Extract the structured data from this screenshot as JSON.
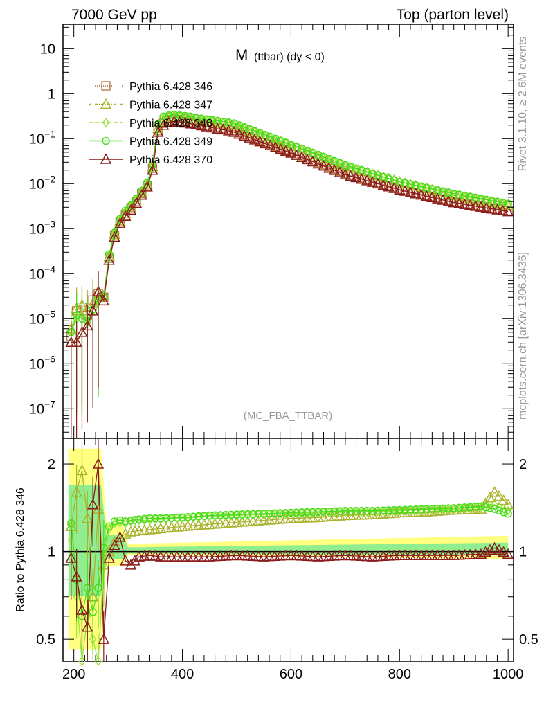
{
  "header": {
    "left": "7000 GeV pp",
    "right": "Top (parton level)"
  },
  "side_labels": {
    "rivet": "Rivet 3.1.10, ≥ 2.6M events",
    "mcplots": "mcplots.cern.ch [arXiv:1306.3436]"
  },
  "chart_data": [
    {
      "type": "line",
      "title": "M (ttbar) (dy < 0)",
      "title_main": "M",
      "title_sub": "(ttbar) (dy < 0)",
      "watermark": "(MC_FBA_TTBAR)",
      "yscale": "log",
      "xlim": [
        180,
        1010
      ],
      "ylim": [
        2.2e-08,
        35
      ],
      "x_ticks": [
        200,
        400,
        600,
        800,
        1000
      ],
      "y_ticks": [
        {
          "value": 1e-07,
          "base": "10",
          "exp": "−7"
        },
        {
          "value": 1e-06,
          "base": "10",
          "exp": "−6"
        },
        {
          "value": 1e-05,
          "base": "10",
          "exp": "−5"
        },
        {
          "value": 0.0001,
          "base": "10",
          "exp": "−4"
        },
        {
          "value": 0.001,
          "base": "10",
          "exp": "−3"
        },
        {
          "value": 0.01,
          "base": "10",
          "exp": "−2"
        },
        {
          "value": 0.1,
          "base": "10",
          "exp": "−1"
        },
        {
          "value": 1,
          "base": "1",
          "exp": ""
        },
        {
          "value": 10,
          "base": "10",
          "exp": ""
        }
      ],
      "legend_position": "top-left",
      "series": [
        {
          "name": "Pythia 6.428 346",
          "color": "#b5703a",
          "marker": "square",
          "dash": "1,2",
          "x": [
            195,
            205,
            215,
            225,
            235,
            245,
            255,
            265,
            275,
            285,
            295,
            305,
            315,
            325,
            335,
            345,
            355,
            365,
            375,
            385,
            395,
            405,
            415,
            425,
            435,
            445,
            455,
            465,
            475,
            485,
            495,
            600,
            700,
            800,
            900,
            1000
          ],
          "y": [
            4e-06,
            1.5e-05,
            1.8e-05,
            1.2e-05,
            2.6e-05,
            3.6e-05,
            3e-05,
            0.00022,
            0.0007,
            0.0014,
            0.002,
            0.0028,
            0.004,
            0.006,
            0.009,
            0.022,
            0.15,
            0.22,
            0.25,
            0.26,
            0.25,
            0.24,
            0.23,
            0.22,
            0.21,
            0.2,
            0.19,
            0.18,
            0.17,
            0.16,
            0.15,
            0.05,
            0.017,
            0.0075,
            0.004,
            0.0025
          ]
        },
        {
          "name": "Pythia 6.428 347",
          "color": "#a8b22a",
          "marker": "triangle",
          "dash": "4,2,1,2",
          "x": [
            195,
            205,
            215,
            225,
            235,
            245,
            255,
            265,
            275,
            285,
            295,
            305,
            315,
            325,
            335,
            345,
            355,
            365,
            375,
            385,
            395,
            405,
            415,
            425,
            435,
            445,
            455,
            465,
            475,
            485,
            495,
            600,
            700,
            800,
            900,
            1000
          ],
          "y": [
            6e-06,
            1.7e-05,
            2e-05,
            1.5e-05,
            2.2e-05,
            3.8e-05,
            3.2e-05,
            0.00024,
            0.00075,
            0.0015,
            0.0022,
            0.003,
            0.0044,
            0.0065,
            0.0098,
            0.024,
            0.17,
            0.26,
            0.3,
            0.31,
            0.3,
            0.29,
            0.28,
            0.27,
            0.26,
            0.25,
            0.24,
            0.23,
            0.22,
            0.21,
            0.2,
            0.07,
            0.024,
            0.011,
            0.0055,
            0.0033
          ]
        },
        {
          "name": "Pythia 6.428 348",
          "color": "#9be23a",
          "marker": "diamond",
          "dash": "6,3",
          "x": [
            195,
            205,
            215,
            225,
            235,
            245,
            255,
            265,
            275,
            285,
            295,
            305,
            315,
            325,
            335,
            345,
            355,
            365,
            375,
            385,
            395,
            405,
            415,
            425,
            435,
            445,
            455,
            465,
            475,
            485,
            495,
            600,
            700,
            800,
            900,
            1000
          ],
          "y": [
            5e-06,
            1e-05,
            1.2e-05,
            8e-06,
            1.5e-05,
            2.5e-05,
            3e-05,
            0.00026,
            0.0008,
            0.0016,
            0.0024,
            0.0032,
            0.0046,
            0.0068,
            0.01,
            0.026,
            0.2,
            0.3,
            0.32,
            0.33,
            0.32,
            0.31,
            0.3,
            0.28,
            0.27,
            0.26,
            0.25,
            0.24,
            0.23,
            0.22,
            0.21,
            0.072,
            0.025,
            0.011,
            0.0058,
            0.0035
          ]
        },
        {
          "name": "Pythia 6.428 349",
          "color": "#44dd1a",
          "marker": "circle",
          "dash": "",
          "x": [
            195,
            205,
            215,
            225,
            235,
            245,
            255,
            265,
            275,
            285,
            295,
            305,
            315,
            325,
            335,
            345,
            355,
            365,
            375,
            385,
            395,
            405,
            415,
            425,
            435,
            445,
            455,
            465,
            475,
            485,
            495,
            600,
            700,
            800,
            900,
            1000
          ],
          "y": [
            5e-06,
            1.2e-05,
            1e-05,
            9e-06,
            1.6e-05,
            2.7e-05,
            3.1e-05,
            0.00027,
            0.00082,
            0.00165,
            0.0025,
            0.0033,
            0.0047,
            0.007,
            0.0105,
            0.027,
            0.21,
            0.31,
            0.33,
            0.34,
            0.33,
            0.32,
            0.31,
            0.29,
            0.28,
            0.27,
            0.26,
            0.25,
            0.24,
            0.23,
            0.22,
            0.074,
            0.026,
            0.011,
            0.006,
            0.0036
          ]
        },
        {
          "name": "Pythia 6.428 370",
          "color": "#8b1a1a",
          "marker": "triangle",
          "dash": "",
          "x": [
            195,
            205,
            215,
            225,
            235,
            245,
            255,
            265,
            275,
            285,
            295,
            305,
            315,
            325,
            335,
            345,
            355,
            365,
            375,
            385,
            395,
            405,
            415,
            425,
            435,
            445,
            455,
            465,
            475,
            485,
            495,
            600,
            700,
            800,
            900,
            1000
          ],
          "y": [
            3e-06,
            3e-06,
            5e-06,
            7e-06,
            1.5e-05,
            4e-05,
            2.5e-05,
            0.0002,
            0.00065,
            0.0013,
            0.0019,
            0.0026,
            0.0037,
            0.0056,
            0.0085,
            0.02,
            0.14,
            0.2,
            0.23,
            0.24,
            0.235,
            0.225,
            0.215,
            0.205,
            0.195,
            0.185,
            0.175,
            0.165,
            0.158,
            0.15,
            0.14,
            0.048,
            0.016,
            0.0073,
            0.0038,
            0.0024
          ]
        }
      ]
    },
    {
      "type": "line",
      "ylabel": "Ratio to Pythia 6.428 346",
      "yscale": "log",
      "xlim": [
        180,
        1010
      ],
      "ylim": [
        0.42,
        2.45
      ],
      "x_ticks": [
        200,
        400,
        600,
        800,
        1000
      ],
      "y_ticks": [
        0.5,
        1,
        2
      ],
      "reference_line": 1,
      "series": [
        {
          "name": "Pythia 6.428 347",
          "color": "#a8b22a",
          "marker": "triangle",
          "x": [
            195,
            205,
            215,
            225,
            235,
            245,
            255,
            265,
            275,
            285,
            295,
            305,
            320,
            340,
            360,
            400,
            450,
            500,
            550,
            600,
            650,
            700,
            750,
            800,
            850,
            900,
            950,
            975,
            1000
          ],
          "y": [
            1.22,
            1.6,
            1.9,
            1.3,
            0.7,
            1.4,
            0.9,
            1.0,
            1.08,
            1.12,
            1.15,
            1.17,
            1.18,
            1.19,
            1.2,
            1.22,
            1.24,
            1.26,
            1.28,
            1.3,
            1.31,
            1.33,
            1.34,
            1.36,
            1.37,
            1.39,
            1.4,
            1.6,
            1.45
          ]
        },
        {
          "name": "Pythia 6.428 348",
          "color": "#9be23a",
          "marker": "diamond",
          "x": [
            195,
            205,
            215,
            225,
            235,
            245,
            255,
            265,
            275,
            285,
            295,
            305,
            320,
            340,
            360,
            400,
            450,
            500,
            550,
            600,
            650,
            700,
            750,
            800,
            850,
            900,
            950,
            975,
            1000
          ],
          "y": [
            1.1,
            0.7,
            0.38,
            0.6,
            0.5,
            0.38,
            0.9,
            1.2,
            1.25,
            1.26,
            1.25,
            1.27,
            1.28,
            1.28,
            1.29,
            1.3,
            1.32,
            1.33,
            1.34,
            1.35,
            1.36,
            1.37,
            1.37,
            1.38,
            1.39,
            1.4,
            1.42,
            1.45,
            1.38
          ]
        },
        {
          "name": "Pythia 6.428 349",
          "color": "#44dd1a",
          "marker": "circle",
          "x": [
            195,
            205,
            215,
            225,
            235,
            245,
            255,
            265,
            275,
            285,
            295,
            305,
            320,
            340,
            360,
            400,
            450,
            500,
            550,
            600,
            650,
            700,
            750,
            800,
            850,
            900,
            950,
            975,
            1000
          ],
          "y": [
            1.25,
            0.8,
            0.6,
            0.75,
            0.62,
            0.75,
            1.03,
            1.22,
            1.27,
            1.28,
            1.27,
            1.28,
            1.29,
            1.3,
            1.3,
            1.31,
            1.33,
            1.34,
            1.35,
            1.36,
            1.37,
            1.38,
            1.38,
            1.39,
            1.4,
            1.41,
            1.43,
            1.4,
            1.35
          ]
        },
        {
          "name": "Pythia 6.428 370",
          "color": "#8b1a1a",
          "marker": "triangle",
          "x": [
            195,
            205,
            215,
            225,
            235,
            245,
            255,
            265,
            275,
            285,
            295,
            305,
            320,
            340,
            360,
            400,
            450,
            500,
            550,
            600,
            650,
            700,
            750,
            800,
            850,
            900,
            950,
            975,
            1000
          ],
          "y": [
            0.95,
            0.82,
            0.63,
            0.55,
            1.45,
            2.0,
            0.5,
            0.95,
            1.05,
            1.12,
            0.93,
            0.9,
            0.96,
            0.97,
            0.96,
            0.96,
            0.96,
            0.97,
            0.96,
            0.97,
            0.96,
            0.97,
            0.96,
            0.97,
            0.97,
            0.97,
            0.98,
            1.03,
            0.98
          ]
        }
      ]
    }
  ]
}
